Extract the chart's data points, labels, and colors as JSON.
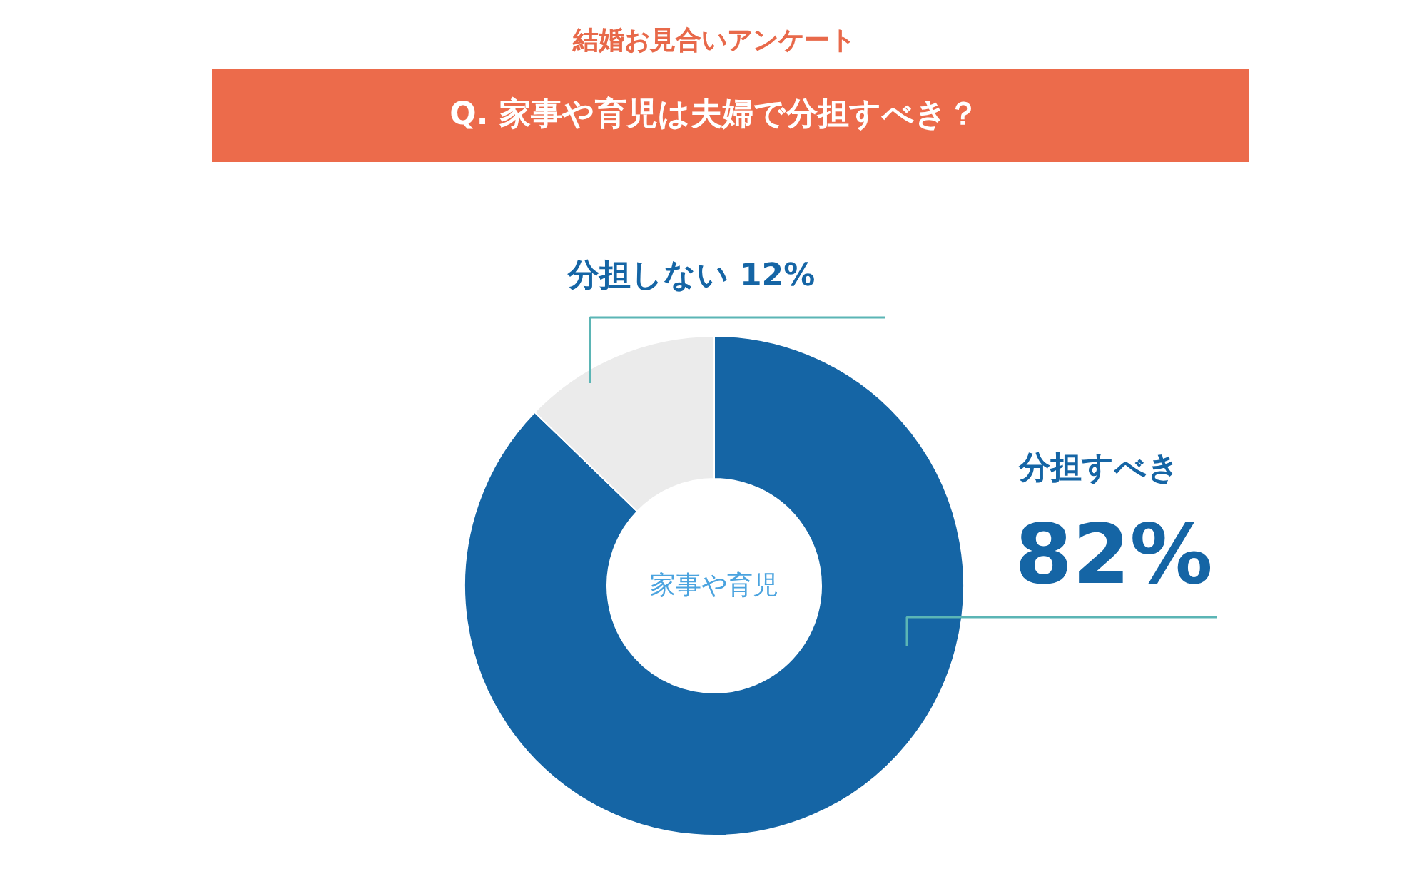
{
  "chart_data": {
    "type": "donut",
    "title": "結婚お見合いアンケート",
    "subtitle": "Q. 家事や育児は夫婦で分担すべき？",
    "categories": [
      "分担すべき",
      "分担しない"
    ],
    "values": [
      82,
      12
    ],
    "colors": [
      "#1565a5",
      "#ebebeb"
    ],
    "value_labels": [
      "82%",
      "12%"
    ],
    "annotations": [
      "家事や育児"
    ]
  }
}
